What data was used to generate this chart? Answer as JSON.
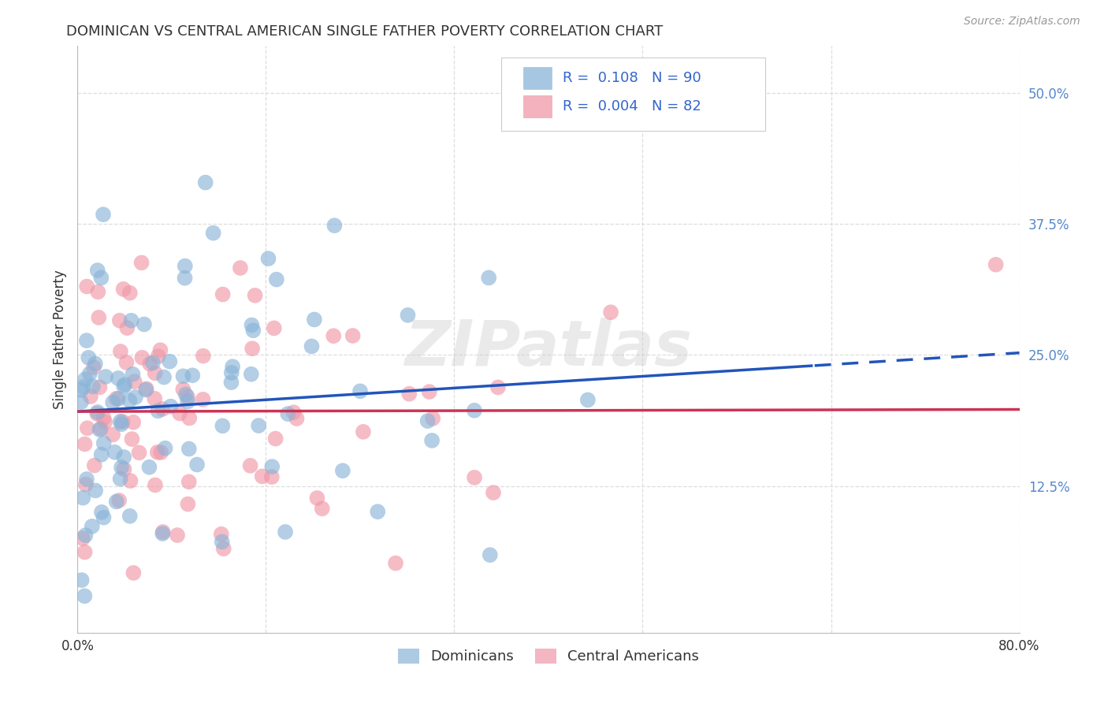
{
  "title": "DOMINICAN VS CENTRAL AMERICAN SINGLE FATHER POVERTY CORRELATION CHART",
  "source": "Source: ZipAtlas.com",
  "ylabel": "Single Father Poverty",
  "xmin": 0.0,
  "xmax": 0.8,
  "ymin": -0.015,
  "ymax": 0.545,
  "ytick_values": [
    0.125,
    0.25,
    0.375,
    0.5
  ],
  "ytick_labels": [
    "12.5%",
    "25.0%",
    "37.5%",
    "50.0%"
  ],
  "xgrid_values": [
    0.0,
    0.16,
    0.32,
    0.48,
    0.64,
    0.8
  ],
  "series1_name": "Dominicans",
  "series2_name": "Central Americans",
  "series1_color": "#8ab4d8",
  "series2_color": "#f098a8",
  "trend1_color": "#2255bb",
  "trend2_color": "#cc3355",
  "legend_text1": "R =  0.108   N = 90",
  "legend_text2": "R =  0.004   N = 82",
  "R1": 0.108,
  "N1": 90,
  "R2": 0.004,
  "N2": 82,
  "background_color": "#ffffff",
  "grid_color": "#dddddd",
  "title_fontsize": 13,
  "watermark": "ZIPatlas",
  "trend_split_x": 0.625,
  "trend1_y0": 0.196,
  "trend1_y1": 0.252,
  "trend2_y0": 0.196,
  "trend2_y1": 0.198
}
